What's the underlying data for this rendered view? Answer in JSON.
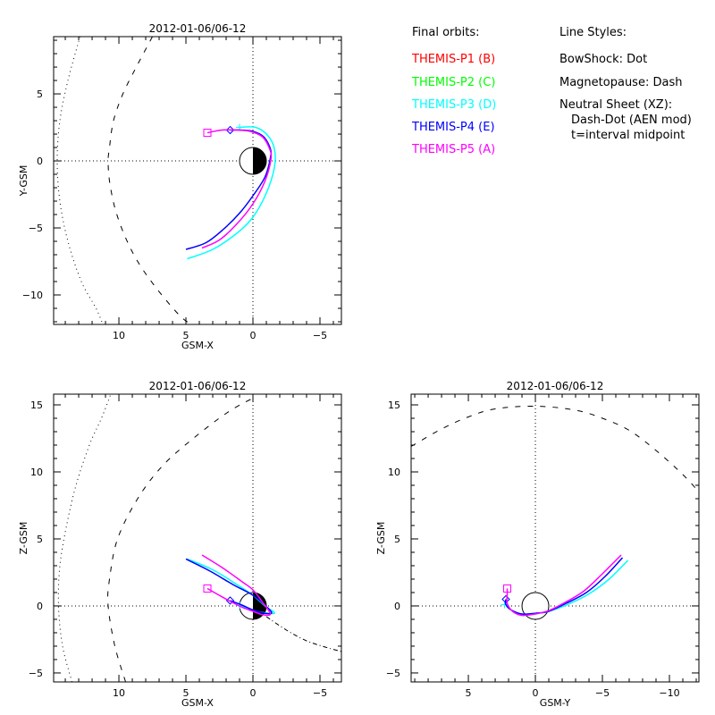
{
  "legend": {
    "orbits_title": "Final orbits:",
    "probes": [
      {
        "label": "THEMIS-P1 (B)",
        "color": "#ff0000"
      },
      {
        "label": "THEMIS-P2 (C)",
        "color": "#00ff00"
      },
      {
        "label": "THEMIS-P3 (D)",
        "color": "#00ffff"
      },
      {
        "label": "THEMIS-P4 (E)",
        "color": "#0000ff"
      },
      {
        "label": "THEMIS-P5 (A)",
        "color": "#ff00ff"
      }
    ],
    "styles_title": "Line Styles:",
    "styles": [
      "BowShock: Dot",
      "Magnetopause: Dash",
      "Neutral Sheet (XZ):",
      "  Dash-Dot (AEN mod)",
      "  t=interval midpoint"
    ]
  },
  "chart_data": [
    {
      "type": "line",
      "id": "xy",
      "title": "2012-01-06/06-12",
      "xlabel": "GSM-X",
      "ylabel": "Y-GSM",
      "xlim": [
        14.87,
        -6.6
      ],
      "ylim": [
        -12.2,
        9.27
      ],
      "xticks": [
        10,
        5,
        0,
        -5
      ],
      "yticks": [
        -10,
        -5,
        0,
        5
      ],
      "bowshock": [
        [
          12.9,
          9.27
        ],
        [
          13.8,
          6
        ],
        [
          14.4,
          3
        ],
        [
          14.6,
          0
        ],
        [
          14.4,
          -3
        ],
        [
          13.8,
          -6
        ],
        [
          12.8,
          -9
        ],
        [
          11.7,
          -11
        ],
        [
          11.2,
          -12.2
        ]
      ],
      "magnetopause": [
        [
          7.5,
          9.27
        ],
        [
          8.7,
          7
        ],
        [
          9.7,
          5
        ],
        [
          10.4,
          3
        ],
        [
          10.7,
          1
        ],
        [
          10.8,
          0
        ],
        [
          10.7,
          -1.5
        ],
        [
          10.3,
          -3.5
        ],
        [
          9.6,
          -5.5
        ],
        [
          8.6,
          -7.5
        ],
        [
          7.2,
          -9.5
        ],
        [
          5.5,
          -11.5
        ],
        [
          4.6,
          -12.2
        ]
      ],
      "series": [
        {
          "name": "THEMIS-P1 (B)",
          "color": "#ff0000",
          "points": []
        },
        {
          "name": "THEMIS-P2 (C)",
          "color": "#00ff00",
          "points": []
        },
        {
          "name": "THEMIS-P3 (D)",
          "color": "#00ffff",
          "points": [
            [
              4.9,
              -7.3
            ],
            [
              3.0,
              -6.6
            ],
            [
              1.2,
              -5.4
            ],
            [
              0,
              -4.2
            ],
            [
              -1.0,
              -2.4
            ],
            [
              -1.6,
              -0.5
            ],
            [
              -1.6,
              0.9
            ],
            [
              -1.1,
              1.9
            ],
            [
              -0.2,
              2.5
            ],
            [
              1.0,
              2.5
            ]
          ],
          "end_marker": "plus"
        },
        {
          "name": "THEMIS-P4 (E)",
          "color": "#0000ff",
          "points": [
            [
              5.0,
              -6.6
            ],
            [
              3.5,
              -6.1
            ],
            [
              2.2,
              -5.1
            ],
            [
              1.0,
              -3.9
            ],
            [
              0,
              -2.6
            ],
            [
              -0.9,
              -1.2
            ],
            [
              -1.3,
              0.2
            ],
            [
              -1.3,
              0.9
            ],
            [
              -0.8,
              1.8
            ],
            [
              0,
              2.2
            ],
            [
              0.9,
              2.3
            ],
            [
              1.7,
              2.3
            ]
          ],
          "end_marker": "diamond"
        },
        {
          "name": "THEMIS-P5 (A)",
          "color": "#ff00ff",
          "points": [
            [
              3.8,
              -6.5
            ],
            [
              2.5,
              -5.9
            ],
            [
              1.2,
              -4.7
            ],
            [
              0,
              -3.2
            ],
            [
              -0.9,
              -1.5
            ],
            [
              -1.35,
              0.2
            ],
            [
              -1.2,
              1.0
            ],
            [
              -0.7,
              1.8
            ],
            [
              0.2,
              2.2
            ],
            [
              1.2,
              2.3
            ],
            [
              2.3,
              2.3
            ],
            [
              3.4,
              2.1
            ]
          ],
          "end_marker": "square"
        }
      ]
    },
    {
      "type": "line",
      "id": "xz",
      "title": "2012-01-06/06-12",
      "xlabel": "GSM-X",
      "ylabel": "Z-GSM",
      "xlim": [
        14.87,
        -6.6
      ],
      "ylim": [
        -5.67,
        15.8
      ],
      "xticks": [
        10,
        5,
        0,
        -5
      ],
      "yticks": [
        -5,
        0,
        5,
        10,
        15
      ],
      "bowshock": [
        [
          13.5,
          -5.67
        ],
        [
          14.2,
          -3
        ],
        [
          14.5,
          0
        ],
        [
          14.4,
          3
        ],
        [
          13.9,
          6
        ],
        [
          13.2,
          9
        ],
        [
          12.2,
          12
        ],
        [
          11.3,
          14
        ],
        [
          10.6,
          15.8
        ]
      ],
      "magnetopause": [
        [
          9.5,
          -5.67
        ],
        [
          10.3,
          -3
        ],
        [
          10.8,
          0
        ],
        [
          10.7,
          2
        ],
        [
          10.1,
          5
        ],
        [
          8.6,
          8
        ],
        [
          6.7,
          10.5
        ],
        [
          4.2,
          12.7
        ],
        [
          1.8,
          14.5
        ],
        [
          0,
          15.5
        ]
      ],
      "neutral_sheet": [
        [
          -1.0,
          -0.8
        ],
        [
          -2.5,
          -1.8
        ],
        [
          -4.0,
          -2.6
        ],
        [
          -5.5,
          -3.1
        ],
        [
          -6.6,
          -3.4
        ]
      ],
      "series": [
        {
          "name": "THEMIS-P1 (B)",
          "color": "#ff0000",
          "points": []
        },
        {
          "name": "THEMIS-P2 (C)",
          "color": "#00ff00",
          "points": []
        },
        {
          "name": "THEMIS-P3 (D)",
          "color": "#00ffff",
          "points": [
            [
              4.9,
              3.5
            ],
            [
              3.0,
              2.7
            ],
            [
              1.2,
              1.6
            ],
            [
              0,
              0.8
            ],
            [
              -0.9,
              0
            ],
            [
              -1.6,
              -0.5
            ],
            [
              -1.2,
              -0.55
            ],
            [
              -0.3,
              -0.4
            ],
            [
              0.5,
              -0.15
            ],
            [
              1.0,
              0.05
            ]
          ],
          "end_marker": "plus"
        },
        {
          "name": "THEMIS-P4 (E)",
          "color": "#0000ff",
          "points": [
            [
              5.0,
              3.5
            ],
            [
              3.2,
              2.6
            ],
            [
              1.5,
              1.6
            ],
            [
              0,
              0.8
            ],
            [
              -0.9,
              0.05
            ],
            [
              -1.4,
              -0.5
            ],
            [
              -0.9,
              -0.55
            ],
            [
              0,
              -0.3
            ],
            [
              0.9,
              0.1
            ],
            [
              1.7,
              0.4
            ]
          ],
          "end_marker": "diamond"
        },
        {
          "name": "THEMIS-P5 (A)",
          "color": "#ff00ff",
          "points": [
            [
              3.8,
              3.8
            ],
            [
              2.2,
              2.8
            ],
            [
              0.8,
              1.8
            ],
            [
              0,
              1.2
            ],
            [
              -0.7,
              0.3
            ],
            [
              -1.3,
              -0.6
            ],
            [
              -0.7,
              -0.65
            ],
            [
              0,
              -0.4
            ],
            [
              0.8,
              -0.1
            ],
            [
              1.8,
              0.4
            ],
            [
              2.7,
              0.9
            ],
            [
              3.4,
              1.3
            ]
          ],
          "end_marker": "square"
        }
      ]
    },
    {
      "type": "line",
      "id": "yz",
      "title": "2012-01-06/06-12",
      "xlabel": "GSM-Y",
      "ylabel": "Z-GSM",
      "xlim": [
        9.27,
        -12.2
      ],
      "ylim": [
        -5.67,
        15.8
      ],
      "xticks": [
        5,
        0,
        -5,
        -10
      ],
      "yticks": [
        -5,
        0,
        5,
        10,
        15
      ],
      "magnetopause": [
        [
          9.27,
          11.9
        ],
        [
          7,
          13.2
        ],
        [
          5,
          14.1
        ],
        [
          3,
          14.7
        ],
        [
          0,
          14.9
        ],
        [
          -3,
          14.6
        ],
        [
          -5,
          14.0
        ],
        [
          -7,
          13.1
        ],
        [
          -9,
          11.6
        ],
        [
          -11,
          9.8
        ],
        [
          -12.2,
          8.5
        ]
      ],
      "series": [
        {
          "name": "THEMIS-P1 (B)",
          "color": "#ff0000",
          "points": []
        },
        {
          "name": "THEMIS-P2 (C)",
          "color": "#00ff00",
          "points": []
        },
        {
          "name": "THEMIS-P3 (D)",
          "color": "#00ffff",
          "points": [
            [
              -6.9,
              3.4
            ],
            [
              -5.5,
              2.0
            ],
            [
              -4.0,
              0.9
            ],
            [
              -2.5,
              0.15
            ],
            [
              -1.0,
              -0.4
            ],
            [
              0,
              -0.55
            ],
            [
              1.0,
              -0.6
            ],
            [
              1.8,
              -0.3
            ],
            [
              2.2,
              0.1
            ],
            [
              2.3,
              0.1
            ]
          ],
          "end_marker": "plus"
        },
        {
          "name": "THEMIS-P4 (E)",
          "color": "#0000ff",
          "points": [
            [
              -6.5,
              3.6
            ],
            [
              -5.2,
              2.2
            ],
            [
              -3.8,
              1.0
            ],
            [
              -2.3,
              0.2
            ],
            [
              -1.0,
              -0.4
            ],
            [
              0,
              -0.55
            ],
            [
              1.0,
              -0.6
            ],
            [
              1.8,
              -0.3
            ],
            [
              2.2,
              0.1
            ],
            [
              2.2,
              0.5
            ]
          ],
          "end_marker": "diamond"
        },
        {
          "name": "THEMIS-P5 (A)",
          "color": "#ff00ff",
          "points": [
            [
              -6.4,
              3.8
            ],
            [
              -5.0,
              2.4
            ],
            [
              -3.6,
              1.1
            ],
            [
              -2.2,
              0.25
            ],
            [
              -1.0,
              -0.35
            ],
            [
              0,
              -0.6
            ],
            [
              1.0,
              -0.7
            ],
            [
              1.7,
              -0.4
            ],
            [
              2.1,
              0.2
            ],
            [
              2.1,
              0.8
            ],
            [
              2.1,
              1.3
            ]
          ],
          "end_marker": "square"
        }
      ]
    }
  ]
}
